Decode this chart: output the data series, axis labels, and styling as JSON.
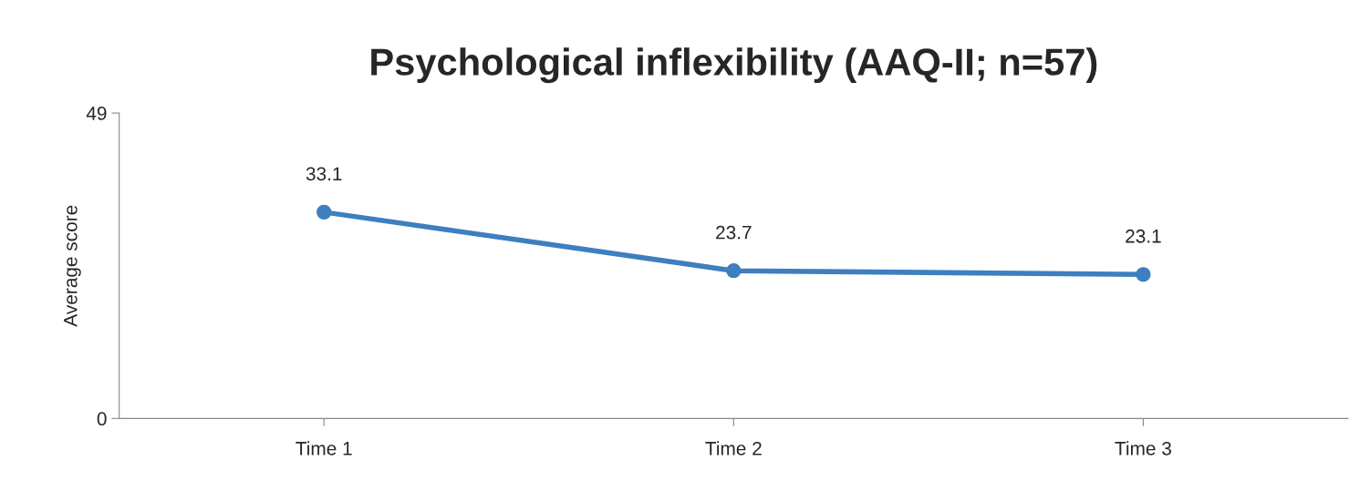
{
  "chart_data": {
    "type": "line",
    "title": "Psychological inflexibility (AAQ-II; n=57)",
    "ylabel": "Average score",
    "categories": [
      "Time 1",
      "Time 2",
      "Time 3"
    ],
    "series": [
      {
        "color": "#3d7fbf",
        "values": [
          33.1,
          23.7,
          23.1
        ]
      }
    ],
    "ylim": [
      0,
      49
    ],
    "yticks": [
      0,
      49
    ],
    "data_labels": true,
    "marker": "circle",
    "line_style": "solid",
    "grid": false
  }
}
